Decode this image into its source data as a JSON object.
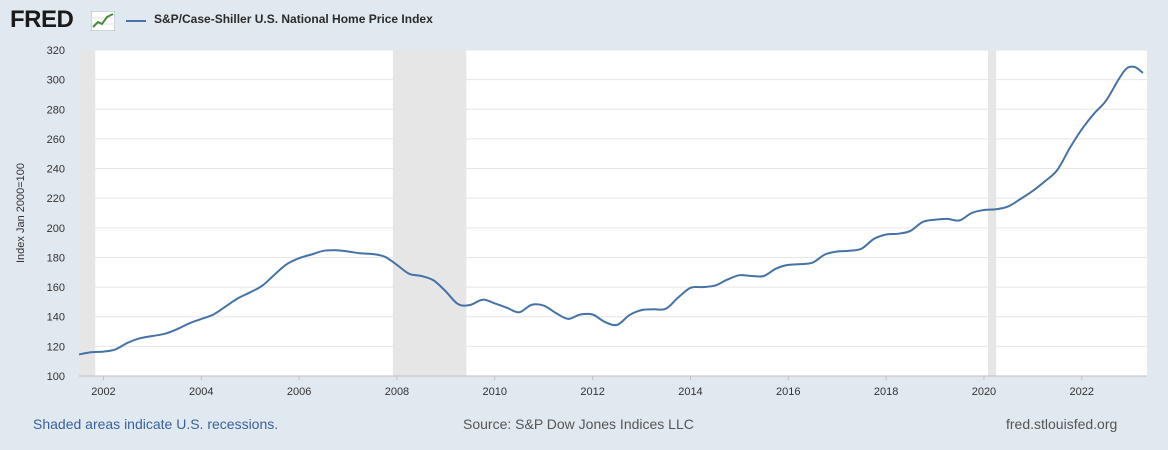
{
  "header": {
    "logo_text": "FRED",
    "logo_icon": "fred-line-chart-icon"
  },
  "chart_data": {
    "type": "line",
    "series": [
      {
        "name": "S&P/Case-Shiller U.S. National Home Price Index",
        "color": "#4572a7",
        "points": [
          [
            "2001-07",
            114.5
          ],
          [
            "2001-10",
            116.0
          ],
          [
            "2002-01",
            116.5
          ],
          [
            "2002-04",
            118.0
          ],
          [
            "2002-07",
            122.5
          ],
          [
            "2002-10",
            125.5
          ],
          [
            "2003-01",
            127.0
          ],
          [
            "2003-04",
            128.5
          ],
          [
            "2003-07",
            131.5
          ],
          [
            "2003-10",
            135.5
          ],
          [
            "2004-01",
            138.5
          ],
          [
            "2004-04",
            141.5
          ],
          [
            "2004-07",
            147.0
          ],
          [
            "2004-10",
            152.5
          ],
          [
            "2005-01",
            156.5
          ],
          [
            "2005-04",
            161.0
          ],
          [
            "2005-07",
            168.5
          ],
          [
            "2005-10",
            175.5
          ],
          [
            "2006-01",
            179.5
          ],
          [
            "2006-04",
            182.0
          ],
          [
            "2006-07",
            184.5
          ],
          [
            "2006-10",
            184.8
          ],
          [
            "2007-01",
            184.0
          ],
          [
            "2007-04",
            182.8
          ],
          [
            "2007-07",
            182.3
          ],
          [
            "2007-10",
            180.5
          ],
          [
            "2008-01",
            175.0
          ],
          [
            "2008-04",
            169.0
          ],
          [
            "2008-07",
            167.5
          ],
          [
            "2008-10",
            164.5
          ],
          [
            "2009-01",
            157.0
          ],
          [
            "2009-04",
            148.5
          ],
          [
            "2009-07",
            148.0
          ],
          [
            "2009-10",
            151.5
          ],
          [
            "2010-01",
            149.0
          ],
          [
            "2010-04",
            146.0
          ],
          [
            "2010-07",
            143.0
          ],
          [
            "2010-10",
            148.0
          ],
          [
            "2011-01",
            147.5
          ],
          [
            "2011-04",
            142.5
          ],
          [
            "2011-07",
            138.5
          ],
          [
            "2011-10",
            141.5
          ],
          [
            "2012-01",
            141.5
          ],
          [
            "2012-04",
            136.5
          ],
          [
            "2012-07",
            134.5
          ],
          [
            "2012-10",
            141.0
          ],
          [
            "2013-01",
            144.5
          ],
          [
            "2013-04",
            145.0
          ],
          [
            "2013-07",
            145.5
          ],
          [
            "2013-10",
            153.0
          ],
          [
            "2014-01",
            159.5
          ],
          [
            "2014-04",
            160.0
          ],
          [
            "2014-07",
            161.0
          ],
          [
            "2014-10",
            165.0
          ],
          [
            "2015-01",
            168.0
          ],
          [
            "2015-04",
            167.5
          ],
          [
            "2015-07",
            167.5
          ],
          [
            "2015-10",
            172.5
          ],
          [
            "2016-01",
            175.0
          ],
          [
            "2016-04",
            175.5
          ],
          [
            "2016-07",
            176.5
          ],
          [
            "2016-10",
            182.0
          ],
          [
            "2017-01",
            184.0
          ],
          [
            "2017-04",
            184.5
          ],
          [
            "2017-07",
            186.0
          ],
          [
            "2017-10",
            192.5
          ],
          [
            "2018-01",
            195.5
          ],
          [
            "2018-04",
            196.0
          ],
          [
            "2018-07",
            198.0
          ],
          [
            "2018-10",
            204.0
          ],
          [
            "2019-01",
            205.5
          ],
          [
            "2019-04",
            206.0
          ],
          [
            "2019-07",
            205.0
          ],
          [
            "2019-10",
            210.0
          ],
          [
            "2020-01",
            212.0
          ],
          [
            "2020-04",
            212.5
          ],
          [
            "2020-07",
            214.5
          ],
          [
            "2020-10",
            219.5
          ],
          [
            "2021-01",
            225.0
          ],
          [
            "2021-04",
            231.5
          ],
          [
            "2021-07",
            239.0
          ],
          [
            "2021-10",
            253.5
          ],
          [
            "2022-01",
            266.5
          ],
          [
            "2022-04",
            277.0
          ],
          [
            "2022-07",
            286.0
          ],
          [
            "2022-10",
            300.0
          ],
          [
            "2022-12",
            307.5
          ],
          [
            "2023-02",
            308.5
          ],
          [
            "2023-04",
            304.5
          ]
        ]
      }
    ],
    "xlim": [
      "2001-07",
      "2023-05"
    ],
    "ylim": [
      100,
      320
    ],
    "x_tick_labels": [
      "2002",
      "2004",
      "2006",
      "2008",
      "2010",
      "2012",
      "2014",
      "2016",
      "2018",
      "2020",
      "2022"
    ],
    "y_tick_labels": [
      100,
      120,
      140,
      160,
      180,
      200,
      220,
      240,
      260,
      280,
      300,
      320
    ],
    "ylabel": "Index Jan 2000=100",
    "xlabel": "",
    "grid": "horizontal",
    "legend": "top-left",
    "recessions": [
      [
        "2001-03",
        "2001-11"
      ],
      [
        "2007-12",
        "2009-06"
      ],
      [
        "2020-02",
        "2020-04"
      ]
    ],
    "recession_color": "#e6e6e6"
  },
  "footer": {
    "note": "Shaded areas indicate U.S. recessions.",
    "source": "Source: S&P Dow Jones Indices LLC",
    "url": "fred.stlouisfed.org"
  }
}
